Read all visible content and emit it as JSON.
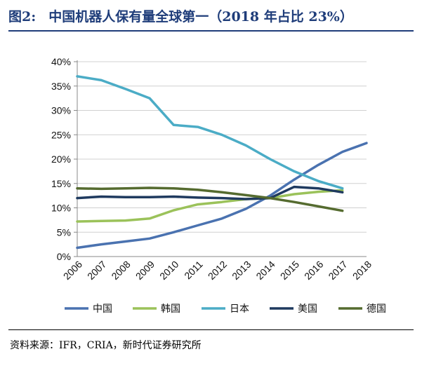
{
  "header": {
    "figure_label": "图2:",
    "title": "中国机器人保有量全球第一（2018 年占比 23%）"
  },
  "footer": {
    "source": "资料来源：IFR，CRIA，新时代证券研究所"
  },
  "chart_data": {
    "type": "line",
    "title": "",
    "xlabel": "",
    "ylabel": "",
    "x": [
      "2006",
      "2007",
      "2008",
      "2009",
      "2010",
      "2011",
      "2012",
      "2013",
      "2014",
      "2015",
      "2016",
      "2017",
      "2018"
    ],
    "ylim": [
      0,
      0.4
    ],
    "yticks": [
      "0%",
      "5%",
      "10%",
      "15%",
      "20%",
      "25%",
      "30%",
      "35%",
      "40%"
    ],
    "ytick_values": [
      0,
      0.05,
      0.1,
      0.15,
      0.2,
      0.25,
      0.3,
      0.35,
      0.4
    ],
    "grid": true,
    "legend_position": "bottom",
    "series": [
      {
        "name": "中国",
        "color": "#4a72b0",
        "values": [
          0.018,
          0.025,
          0.031,
          0.037,
          0.05,
          0.064,
          0.078,
          0.098,
          0.125,
          0.158,
          0.188,
          0.215,
          0.233
        ]
      },
      {
        "name": "韩国",
        "color": "#9bc25a",
        "values": [
          0.072,
          0.073,
          0.074,
          0.078,
          0.095,
          0.107,
          0.112,
          0.118,
          0.12,
          0.128,
          0.133,
          0.136,
          null
        ]
      },
      {
        "name": "日本",
        "color": "#4bacc6",
        "values": [
          0.37,
          0.362,
          0.344,
          0.325,
          0.27,
          0.266,
          0.25,
          0.228,
          0.2,
          0.175,
          0.155,
          0.14,
          null
        ]
      },
      {
        "name": "美国",
        "color": "#1f3a5f",
        "values": [
          0.12,
          0.123,
          0.122,
          0.122,
          0.123,
          0.121,
          0.12,
          0.118,
          0.12,
          0.143,
          0.14,
          0.132,
          null
        ]
      },
      {
        "name": "德国",
        "color": "#556b2f",
        "values": [
          0.14,
          0.139,
          0.14,
          0.141,
          0.14,
          0.137,
          0.132,
          0.126,
          0.12,
          0.112,
          0.103,
          0.094,
          null
        ]
      }
    ]
  }
}
